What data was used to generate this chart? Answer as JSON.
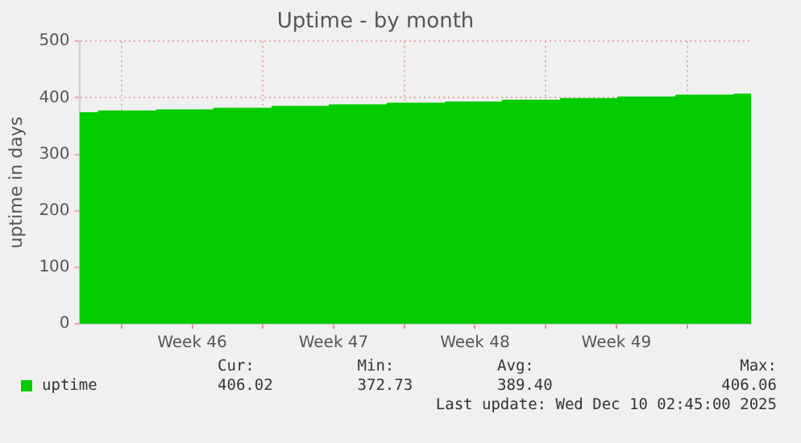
{
  "chart_data": {
    "type": "area",
    "title": "Uptime - by month",
    "ylabel": "uptime in days",
    "x": [
      "2025-11-07T22:00",
      "2025-11-08T21:00",
      "2025-11-08T21:00",
      "2025-11-11T18:00",
      "2025-11-11T18:00",
      "2025-11-14T14:00",
      "2025-11-14T14:00",
      "2025-11-17T11:00",
      "2025-11-17T11:00",
      "2025-11-20T07:00",
      "2025-11-20T07:00",
      "2025-11-23T04:00",
      "2025-11-23T04:00",
      "2025-11-26T01:00",
      "2025-11-26T01:00",
      "2025-11-28T21:00",
      "2025-11-28T21:00",
      "2025-12-01T18:00",
      "2025-12-01T18:00",
      "2025-12-04T14:00",
      "2025-12-04T14:00",
      "2025-12-07T11:00",
      "2025-12-07T11:00",
      "2025-12-10T08:00",
      "2025-12-10T08:00",
      "2025-12-11T04:00"
    ],
    "series": [
      {
        "name": "uptime",
        "color": "#00cc00",
        "values": [
          373,
          373,
          376,
          376,
          378,
          378,
          381,
          381,
          384,
          384,
          387,
          387,
          390,
          390,
          392,
          392,
          395,
          395,
          398,
          398,
          401,
          401,
          404,
          404,
          406,
          406
        ]
      }
    ],
    "xlim": [
      "2025-11-07T22:00",
      "2025-12-11T04:00"
    ],
    "xticks": [
      {
        "value": "2025-11-10T00:00",
        "label": null
      },
      {
        "value": "2025-11-13T12:00",
        "label": "Week 46"
      },
      {
        "value": "2025-11-17T00:00",
        "label": null
      },
      {
        "value": "2025-11-20T12:00",
        "label": "Week 47"
      },
      {
        "value": "2025-11-24T00:00",
        "label": null
      },
      {
        "value": "2025-11-27T12:00",
        "label": "Week 48"
      },
      {
        "value": "2025-12-01T00:00",
        "label": null
      },
      {
        "value": "2025-12-04T12:00",
        "label": "Week 49"
      },
      {
        "value": "2025-12-08T00:00",
        "label": null
      }
    ],
    "ylim": [
      0,
      500
    ],
    "yticks": [
      0,
      100,
      200,
      300,
      400,
      500
    ],
    "grid": true,
    "legend": "bottom left",
    "annotations": [
      "Cur:",
      "Min:",
      "Avg:",
      "Max:",
      "406.02",
      "372.73",
      "389.40",
      "406.06",
      "Last update: Wed Dec 10 02:45:00 2025"
    ]
  }
}
